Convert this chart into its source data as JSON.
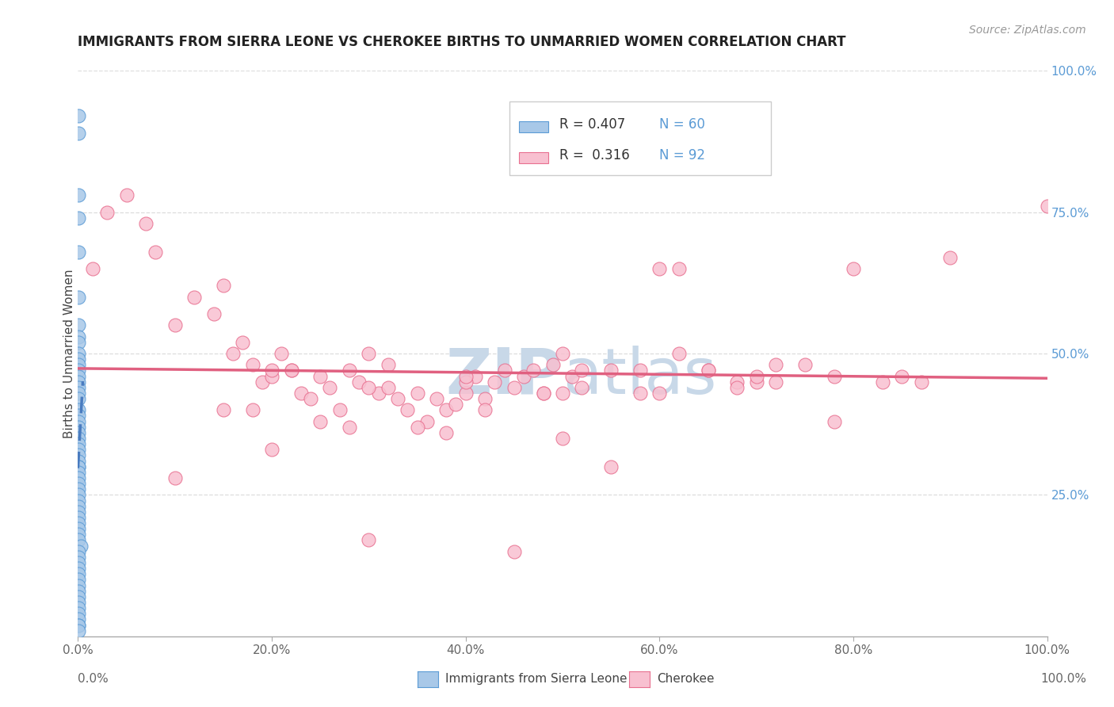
{
  "title": "IMMIGRANTS FROM SIERRA LEONE VS CHEROKEE BIRTHS TO UNMARRIED WOMEN CORRELATION CHART",
  "source_text": "Source: ZipAtlas.com",
  "ylabel": "Births to Unmarried Women",
  "legend_label1": "Immigrants from Sierra Leone",
  "legend_label2": "Cherokee",
  "R1": 0.407,
  "N1": 60,
  "R2": 0.316,
  "N2": 92,
  "color_blue_fill": "#A8C8E8",
  "color_blue_edge": "#5B9BD5",
  "color_pink_fill": "#F8C0D0",
  "color_pink_edge": "#E87090",
  "color_blue_line": "#4A7CC0",
  "color_pink_line": "#E06080",
  "color_grid": "#DDDDDD",
  "color_right_tick": "#5B9BD5",
  "x_tick_labels": [
    "0.0%",
    "20.0%",
    "40.0%",
    "60.0%",
    "80.0%",
    "100.0%"
  ],
  "x_tick_values": [
    0,
    20,
    40,
    60,
    80,
    100
  ],
  "y_tick_labels_right": [
    "25.0%",
    "50.0%",
    "75.0%",
    "100.0%"
  ],
  "y_tick_values_right": [
    25,
    50,
    75,
    100
  ],
  "xmin": 0,
  "xmax": 100,
  "ymin": 0,
  "ymax": 100,
  "blue_scatter_x": [
    0.05,
    0.08,
    0.05,
    0.07,
    0.06,
    0.05,
    0.08,
    0.05,
    0.06,
    0.07,
    0.04,
    0.06,
    0.05,
    0.07,
    0.05,
    0.06,
    0.04,
    0.05,
    0.06,
    0.05,
    0.04,
    0.06,
    0.05,
    0.07,
    0.06,
    0.05,
    0.04,
    0.06,
    0.05,
    0.04,
    0.05,
    0.06,
    0.04,
    0.05,
    0.06,
    0.05,
    0.04,
    0.06,
    0.05,
    0.04,
    0.05,
    0.06,
    0.04,
    0.3,
    0.05,
    0.04,
    0.06,
    0.04,
    0.05,
    0.03,
    0.06,
    0.04,
    0.05,
    0.04,
    0.06,
    0.05,
    0.04,
    0.03,
    0.05,
    0.06
  ],
  "blue_scatter_y": [
    92,
    89,
    78,
    74,
    68,
    60,
    55,
    53,
    52,
    50,
    49,
    48,
    47,
    46,
    45,
    44,
    43,
    42,
    40,
    39,
    38,
    37,
    36,
    35,
    34,
    33,
    32,
    31,
    30,
    30,
    29,
    28,
    27,
    26,
    25,
    24,
    23,
    22,
    21,
    20,
    19,
    18,
    17,
    16,
    15,
    14,
    13,
    12,
    11,
    10,
    9,
    8,
    7,
    6,
    5,
    4,
    3,
    2,
    2,
    1
  ],
  "pink_scatter_x": [
    1.5,
    3.0,
    5.0,
    7.0,
    8.0,
    10.0,
    12.0,
    14.0,
    15.0,
    16.0,
    17.0,
    18.0,
    19.0,
    20.0,
    21.0,
    22.0,
    23.0,
    24.0,
    25.0,
    26.0,
    27.0,
    28.0,
    29.0,
    30.0,
    31.0,
    32.0,
    33.0,
    34.0,
    35.0,
    36.0,
    37.0,
    38.0,
    39.0,
    40.0,
    41.0,
    42.0,
    43.0,
    44.0,
    45.0,
    46.0,
    47.0,
    48.0,
    49.0,
    50.0,
    51.0,
    52.0,
    55.0,
    58.0,
    60.0,
    62.0,
    65.0,
    68.0,
    70.0,
    72.0,
    75.0,
    78.0,
    80.0,
    83.0,
    85.0,
    87.0,
    90.0,
    10.0,
    20.0,
    30.0,
    40.0,
    50.0,
    60.0,
    70.0,
    45.0,
    35.0,
    25.0,
    15.0,
    55.0,
    65.0,
    20.0,
    30.0,
    40.0,
    50.0,
    18.0,
    28.0,
    38.0,
    48.0,
    58.0,
    68.0,
    78.0,
    22.0,
    32.0,
    42.0,
    52.0,
    62.0,
    72.0,
    100.0
  ],
  "pink_scatter_y": [
    65,
    75,
    78,
    73,
    68,
    55,
    60,
    57,
    62,
    50,
    52,
    48,
    45,
    46,
    50,
    47,
    43,
    42,
    46,
    44,
    40,
    47,
    45,
    50,
    43,
    48,
    42,
    40,
    43,
    38,
    42,
    40,
    41,
    43,
    46,
    42,
    45,
    47,
    44,
    46,
    47,
    43,
    48,
    50,
    46,
    44,
    47,
    43,
    43,
    65,
    47,
    45,
    45,
    45,
    48,
    38,
    65,
    45,
    46,
    45,
    67,
    28,
    33,
    17,
    45,
    35,
    65,
    46,
    15,
    37,
    38,
    40,
    30,
    47,
    47,
    44,
    46,
    43,
    40,
    37,
    36,
    43,
    47,
    44,
    46,
    47,
    44,
    40,
    47,
    50,
    48,
    76
  ],
  "watermark_line1": "ZIP",
  "watermark_line2": "atlas",
  "watermark_color": "#C8D8E8"
}
